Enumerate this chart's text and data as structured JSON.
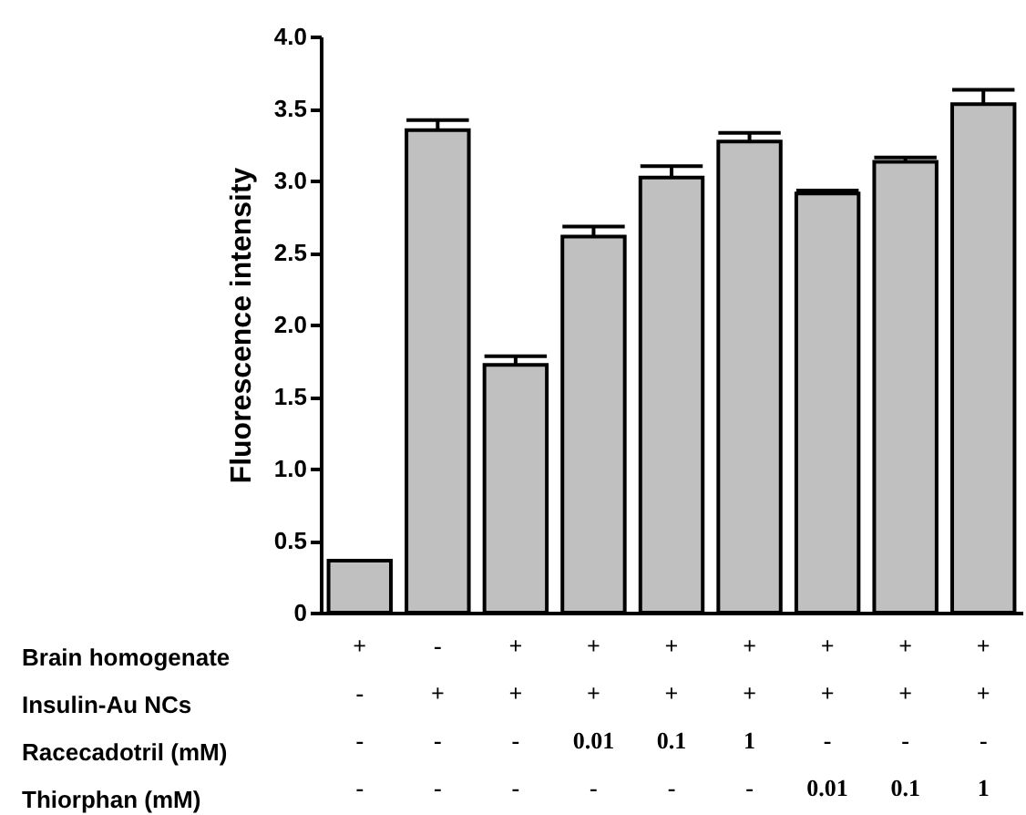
{
  "chart_data": {
    "type": "bar",
    "ylabel": "Fluorescence intensity",
    "categories": [
      "+\n-\n-\n-",
      "-\n+\n-\n-",
      "+\n+\n-\n-",
      "+\n+\n0.01\n-",
      "+\n+\n0.1\n-",
      "+\n+\n1\n-",
      "+\n+\n-\n0.01",
      "+\n+\n-\n0.1",
      "+\n+\n-\n1"
    ],
    "values": [
      0.36,
      3.35,
      1.72,
      2.61,
      3.02,
      3.27,
      2.91,
      3.13,
      3.53
    ],
    "errors": [
      null,
      [
        3.35,
        3.42
      ],
      [
        1.72,
        1.78
      ],
      [
        2.61,
        2.68
      ],
      [
        3.02,
        3.1
      ],
      [
        3.27,
        3.33
      ],
      [
        2.91,
        2.93
      ],
      [
        3.13,
        3.16
      ],
      [
        3.53,
        3.63
      ]
    ],
    "color": "#c0c0c0",
    "ylim": [
      0,
      4
    ],
    "yticks": [
      0,
      0.5,
      {
        "value": 1,
        "label": "1.0"
      },
      1.5,
      {
        "value": 2,
        "label": "2.0"
      },
      2.5,
      {
        "value": 3,
        "label": "3.0"
      },
      3.5,
      {
        "value": 4,
        "label": "4.0"
      }
    ],
    "annotations": [
      "Brain homogenate",
      "Insulin-Au NCs",
      "Racecadotril (mM)",
      "Thiorphan (mM)"
    ]
  }
}
